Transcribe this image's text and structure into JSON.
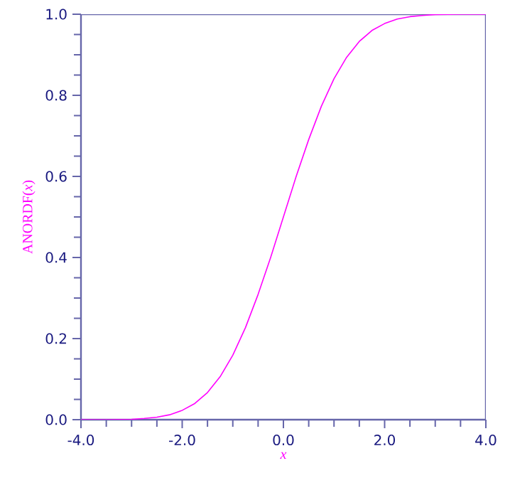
{
  "chart_data": {
    "type": "line",
    "xlabel": "*x*",
    "ylabel": "ANORDF(*x*)",
    "x": [
      -4.0,
      -3.5,
      -3.0,
      -2.75,
      -2.5,
      -2.25,
      -2.0,
      -1.75,
      -1.5,
      -1.25,
      -1.0,
      -0.75,
      -0.5,
      -0.25,
      0.0,
      0.25,
      0.5,
      0.75,
      1.0,
      1.25,
      1.5,
      1.75,
      2.0,
      2.25,
      2.5,
      2.75,
      3.0,
      3.5,
      4.0
    ],
    "series": [
      {
        "color": "#ff00ff",
        "values": [
          0.0,
          0.0,
          0.001,
          0.003,
          0.006,
          0.012,
          0.023,
          0.04,
          0.067,
          0.106,
          0.159,
          0.227,
          0.309,
          0.401,
          0.5,
          0.599,
          0.691,
          0.773,
          0.841,
          0.894,
          0.933,
          0.96,
          0.977,
          0.988,
          0.994,
          0.997,
          0.999,
          1.0,
          1.0
        ]
      }
    ],
    "xlim": [
      -4.0,
      4.0
    ],
    "ylim": [
      0.0,
      1.0
    ],
    "xticks": [
      {
        "value": -4.0,
        "label": "-4.0"
      },
      {
        "value": -2.0,
        "label": "-2.0"
      },
      {
        "value": 0.0,
        "label": "0.0"
      },
      {
        "value": 2.0,
        "label": "2.0"
      },
      {
        "value": 4.0,
        "label": "4.0"
      }
    ],
    "yticks": [
      {
        "value": 0.0,
        "label": "0.0"
      },
      {
        "value": 0.2,
        "label": "0.2"
      },
      {
        "value": 0.4,
        "label": "0.4"
      },
      {
        "value": 0.6,
        "label": "0.6"
      },
      {
        "value": 0.8,
        "label": "0.8"
      },
      {
        "value": 1.0,
        "label": "1.0"
      }
    ],
    "grid": false,
    "marker": "none",
    "line_style": "solid"
  }
}
